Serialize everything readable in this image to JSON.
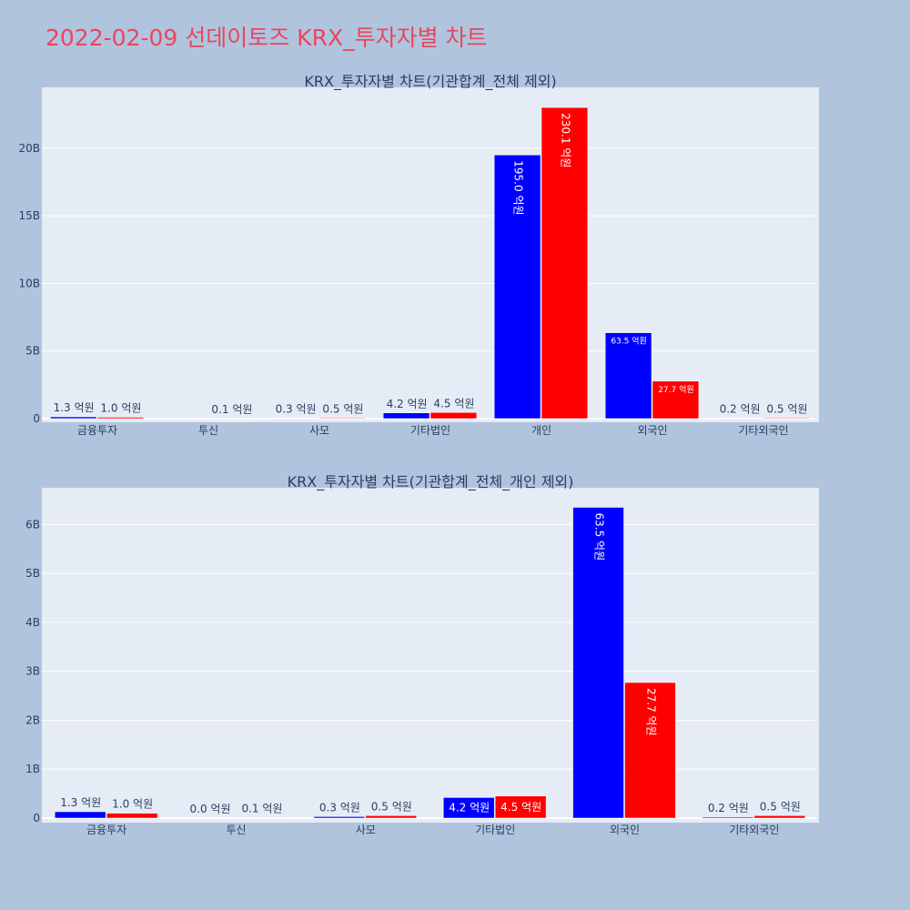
{
  "page_title": "2022-02-09 선데이토즈 KRX_투자자별 차트",
  "colors": {
    "buy": "#0000ff",
    "sell": "#ff0000",
    "plot_bg": "#e5ecf6",
    "page_bg": "#b0c4de",
    "title": "#e8475f"
  },
  "chart_data": [
    {
      "type": "bar",
      "title": "KRX_투자자별 차트(기관합계_전체 제외)",
      "categories": [
        "금융투자",
        "투신",
        "사모",
        "기타법인",
        "개인",
        "외국인",
        "기타외국인"
      ],
      "series": [
        {
          "values": [
            0.13,
            0,
            0.03,
            0.42,
            19.5,
            6.35,
            0.02
          ],
          "labels": [
            "1.3 억원",
            "",
            "0.3 억원",
            "4.2 억원",
            "195.0 억원",
            "63.5 억원",
            "0.2 억원"
          ]
        },
        {
          "values": [
            0.1,
            0.01,
            0.05,
            0.45,
            23.01,
            2.77,
            0.05
          ],
          "labels": [
            "1.0 억원",
            "0.1 억원",
            "0.5 억원",
            "4.5 억원",
            "230.1 억원",
            "27.7 억원",
            "0.5 억원"
          ]
        }
      ],
      "yticks": [
        "0",
        "5B",
        "10B",
        "15B",
        "20B"
      ],
      "ylim": [
        0,
        24.5
      ],
      "grid": true
    },
    {
      "type": "bar",
      "title": "KRX_투자자별 차트(기관합계_전체_개인 제외)",
      "categories": [
        "금융투자",
        "투신",
        "사모",
        "기타법인",
        "외국인",
        "기타외국인"
      ],
      "series": [
        {
          "values": [
            0.13,
            0.004,
            0.03,
            0.42,
            6.35,
            0.02
          ],
          "labels": [
            "1.3 억원",
            "0.0 억원",
            "0.3 억원",
            "4.2 억원",
            "63.5 억원",
            "0.2 억원"
          ]
        },
        {
          "values": [
            0.1,
            0.01,
            0.05,
            0.45,
            2.77,
            0.05
          ],
          "labels": [
            "1.0 억원",
            "0.1 억원",
            "0.5 억원",
            "4.5 억원",
            "27.7 억원",
            "0.5 억원"
          ]
        }
      ],
      "yticks": [
        "0",
        "1B",
        "2B",
        "3B",
        "4B",
        "5B",
        "6B"
      ],
      "ylim": [
        0,
        6.75
      ],
      "grid": true
    }
  ]
}
